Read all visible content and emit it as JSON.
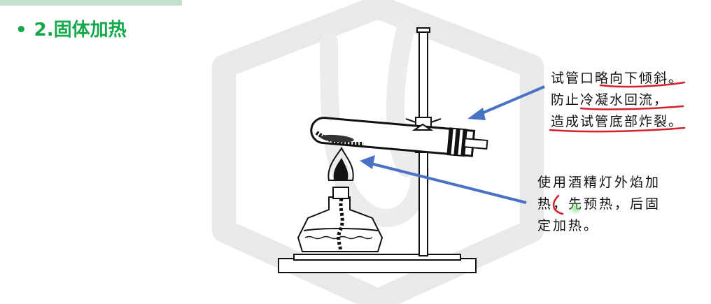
{
  "heading": {
    "bullet": "•",
    "text": "2.固体加热"
  },
  "annotations": {
    "tube_note": {
      "lines": [
        "试管口略向下倾斜。",
        "防止冷凝水回流，",
        "造成试管底部炸裂。"
      ]
    },
    "lamp_note": {
      "lines": [
        "使用酒精灯外焰加",
        "热，先预热，后固",
        "定加热。"
      ]
    }
  },
  "colors": {
    "heading": "#14a84a",
    "arrow": "#4a72c4",
    "underline": "#d4202a",
    "watermark": "#e6e6e6"
  },
  "icons": {
    "watermark": "hexagon-logo-watermark",
    "cursor": "green-pointer-dot"
  }
}
